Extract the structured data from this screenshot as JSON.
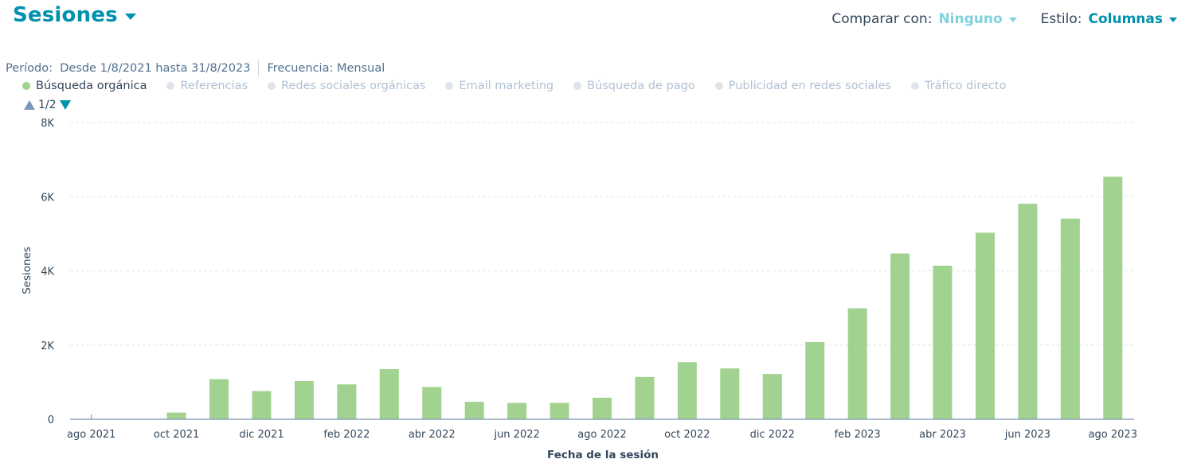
{
  "header": {
    "title": "Sesiones",
    "compare_label": "Comparar con:",
    "compare_value": "Ninguno",
    "style_label": "Estilo:",
    "style_value": "Columnas"
  },
  "meta": {
    "period": "Período:  Desde 1/8/2021 hasta 31/8/2023",
    "frequency": "Frecuencia: Mensual"
  },
  "legend": [
    {
      "label": "Búsqueda orgánica",
      "color": "#a2d28f",
      "active": true
    },
    {
      "label": "Referencias",
      "color": "#dfe3eb",
      "active": false
    },
    {
      "label": "Redes sociales orgánicas",
      "color": "#dfe3eb",
      "active": false
    },
    {
      "label": "Email marketing",
      "color": "#dfe3eb",
      "active": false
    },
    {
      "label": "Búsqueda de pago",
      "color": "#dfe3eb",
      "active": false
    },
    {
      "label": "Publicidad en redes sociales",
      "color": "#dfe3eb",
      "active": false
    },
    {
      "label": "Tráfico directo",
      "color": "#dfe3eb",
      "active": false
    }
  ],
  "pager": {
    "text": "1/2"
  },
  "colors": {
    "bar": "#a2d28f",
    "accent": "#0091ae",
    "grid": "#dfe3eb",
    "axis": "#7c98b6"
  },
  "chart_data": {
    "type": "bar",
    "xlabel": "Fecha de la sesión",
    "ylabel": "Sesiones",
    "ylim": [
      0,
      8000
    ],
    "yticks": [
      0,
      2000,
      4000,
      6000,
      8000
    ],
    "ytick_labels": [
      "0",
      "2K",
      "4K",
      "6K",
      "8K"
    ],
    "grid": true,
    "categories": [
      "ago 2021",
      "sep 2021",
      "oct 2021",
      "nov 2021",
      "dic 2021",
      "ene 2022",
      "feb 2022",
      "mar 2022",
      "abr 2022",
      "may 2022",
      "jun 2022",
      "jul 2022",
      "ago 2022",
      "sep 2022",
      "oct 2022",
      "nov 2022",
      "dic 2022",
      "ene 2023",
      "feb 2023",
      "mar 2023",
      "abr 2023",
      "may 2023",
      "jun 2023",
      "jul 2023",
      "ago 2023"
    ],
    "xtick_labels": [
      "ago 2021",
      "",
      "oct 2021",
      "",
      "dic 2021",
      "",
      "feb 2022",
      "",
      "abr 2022",
      "",
      "jun 2022",
      "",
      "ago 2022",
      "",
      "oct 2022",
      "",
      "dic 2022",
      "",
      "feb 2023",
      "",
      "abr 2023",
      "",
      "jun 2023",
      "",
      "ago 2023"
    ],
    "series": [
      {
        "name": "Búsqueda orgánica",
        "values": [
          0,
          0,
          180,
          1080,
          760,
          1030,
          940,
          1350,
          870,
          470,
          440,
          440,
          580,
          1140,
          1540,
          1370,
          1220,
          2080,
          2990,
          4470,
          4140,
          5030,
          5810,
          5410,
          6540
        ]
      }
    ]
  }
}
